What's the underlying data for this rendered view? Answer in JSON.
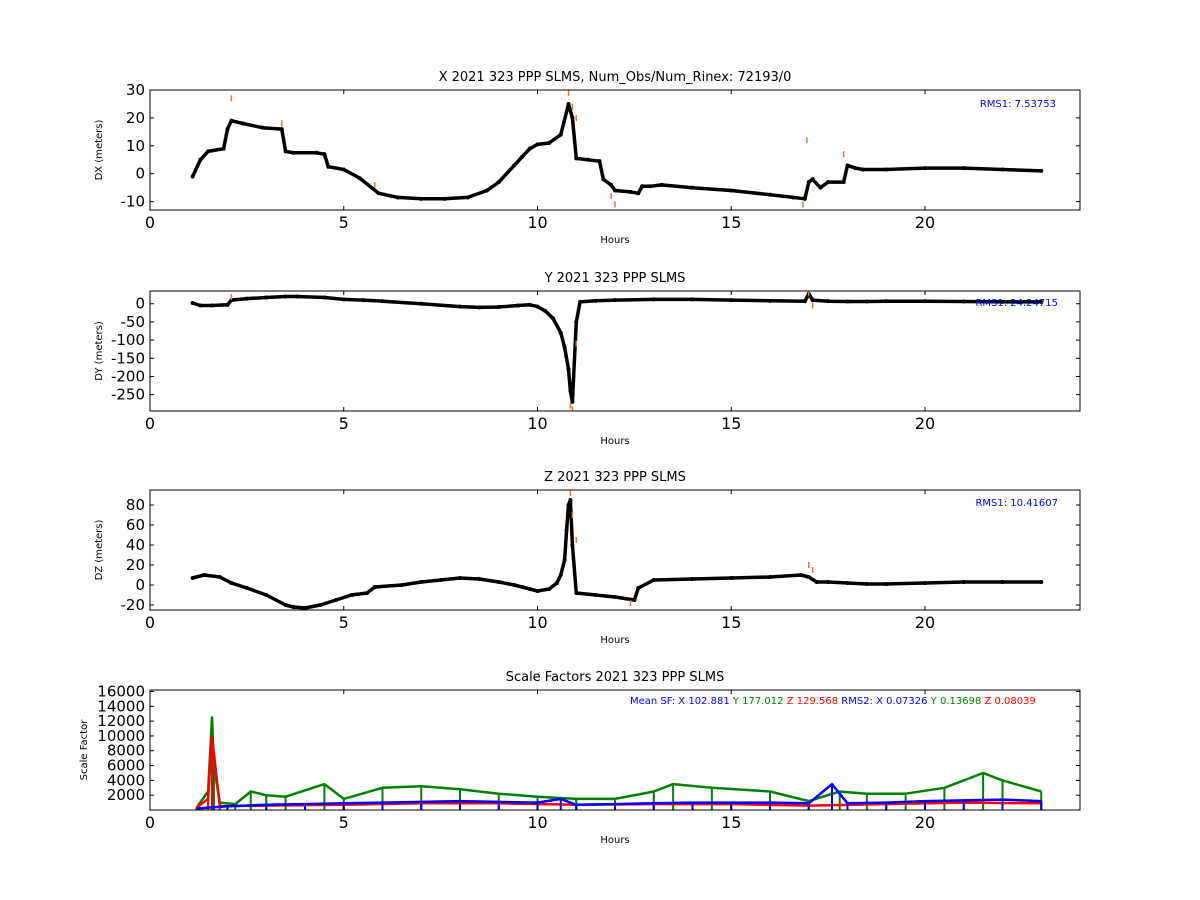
{
  "chart_data": [
    {
      "type": "scatter",
      "title": "X 2021 323 PPP  SLMS, Num_Obs/Num_Rinex: 72193/0",
      "xlabel": "Hours",
      "ylabel": "DX (meters)",
      "xlim": [
        0,
        24
      ],
      "ylim": [
        -13,
        30
      ],
      "xticks": [
        0,
        5,
        10,
        15,
        20
      ],
      "yticks": [
        -10,
        0,
        10,
        20,
        30
      ],
      "annotation": "RMS1:  7.53753",
      "annotation_color": "#0000ff",
      "series": [
        {
          "name": "",
          "color": "#000000",
          "x": [
            1.1,
            1.3,
            1.5,
            1.9,
            2.0,
            2.1,
            2.4,
            2.9,
            3.4,
            3.5,
            3.7,
            4.3,
            4.5,
            4.6,
            5.0,
            5.4,
            5.9,
            6.4,
            7.0,
            7.6,
            8.2,
            8.7,
            9.0,
            9.4,
            9.6,
            9.8,
            10.0,
            10.3,
            10.6,
            10.8,
            10.9,
            11.0,
            11.3,
            11.6,
            11.7,
            11.9,
            12.0,
            12.4,
            12.6,
            12.7,
            12.9,
            13.2,
            14.0,
            15.0,
            16.0,
            16.6,
            16.9,
            17.0,
            17.1,
            17.3,
            17.5,
            17.9,
            18.0,
            18.2,
            18.4,
            19.0,
            20.0,
            21.0,
            22.0,
            23.0
          ],
          "y": [
            -1,
            5,
            8,
            9,
            16,
            19,
            18,
            16.5,
            16,
            8,
            7.5,
            7.5,
            7,
            2.5,
            1.5,
            -1.5,
            -7,
            -8.5,
            -9,
            -9,
            -8.5,
            -6,
            -3,
            3,
            6,
            9,
            10.5,
            11,
            14,
            25,
            20,
            5.5,
            5,
            4.5,
            -2,
            -4,
            -6,
            -6.5,
            -7,
            -4.5,
            -4.5,
            -4,
            -5,
            -6,
            -7.5,
            -8.5,
            -9,
            -3,
            -2,
            -5,
            -3,
            -3,
            3,
            2,
            1.5,
            1.5,
            2,
            2,
            1.5,
            1
          ]
        },
        {
          "name": "",
          "color": "#e8733c",
          "x": [
            2.1,
            3.4,
            5.8,
            10.8,
            10.9,
            11.0,
            11.9,
            12.0,
            16.85,
            16.95,
            17.9
          ],
          "y": [
            27,
            18,
            -4,
            29,
            24,
            20,
            -8,
            -11,
            -11,
            12,
            7
          ]
        }
      ]
    },
    {
      "type": "scatter",
      "title": "Y 2021 323 PPP  SLMS",
      "xlabel": "Hours",
      "ylabel": "DY (meters)",
      "xlim": [
        0,
        24
      ],
      "ylim": [
        -295,
        35
      ],
      "xticks": [
        0,
        5,
        10,
        15,
        20
      ],
      "yticks": [
        -250,
        -200,
        -150,
        -100,
        -50,
        0
      ],
      "annotation": "RMS1:  24.24715",
      "annotation_color": "#0000ff",
      "series": [
        {
          "name": "",
          "color": "#000000",
          "x": [
            1.1,
            1.3,
            1.6,
            2.0,
            2.1,
            2.5,
            3.0,
            3.5,
            3.8,
            4.5,
            5.0,
            5.5,
            6.0,
            7.0,
            8.0,
            8.5,
            9.0,
            9.5,
            9.8,
            10.0,
            10.2,
            10.4,
            10.6,
            10.7,
            10.8,
            10.85,
            10.9,
            11.0,
            11.1,
            11.5,
            12.0,
            13.0,
            14.0,
            15.0,
            16.0,
            16.9,
            17.0,
            17.1,
            17.5,
            18.0,
            18.5,
            19.0,
            20.0,
            21.0,
            22.0,
            23.0
          ],
          "y": [
            2,
            -5,
            -5,
            -3,
            10,
            14,
            17,
            20,
            20,
            17,
            12,
            10,
            7,
            0,
            -8,
            -10,
            -9,
            -5,
            -3,
            -8,
            -20,
            -40,
            -80,
            -120,
            -180,
            -240,
            -270,
            -50,
            5,
            8,
            10,
            12,
            12,
            10,
            8,
            7,
            27,
            10,
            7,
            6,
            6,
            7,
            7,
            6,
            5,
            5
          ]
        },
        {
          "name": "",
          "color": "#e8733c",
          "x": [
            2.1,
            10.85,
            10.9,
            11.0,
            17.0,
            17.1
          ],
          "y": [
            18,
            -280,
            -290,
            -110,
            30,
            -5
          ]
        }
      ]
    },
    {
      "type": "scatter",
      "title": "Z 2021 323 PPP  SLMS",
      "xlabel": "Hours",
      "ylabel": "DZ (meters)",
      "xlim": [
        0,
        24
      ],
      "ylim": [
        -25,
        95
      ],
      "xticks": [
        0,
        5,
        10,
        15,
        20
      ],
      "yticks": [
        -20,
        0,
        20,
        40,
        60,
        80
      ],
      "annotation": "RMS1: 10.41607",
      "annotation_color": "#0000ff",
      "series": [
        {
          "name": "",
          "color": "#000000",
          "x": [
            1.1,
            1.4,
            1.8,
            2.1,
            2.5,
            3.0,
            3.5,
            3.7,
            4.0,
            4.4,
            4.8,
            5.2,
            5.6,
            5.8,
            6.5,
            7.0,
            7.5,
            8.0,
            8.5,
            9.0,
            9.4,
            9.6,
            9.8,
            10.0,
            10.3,
            10.5,
            10.6,
            10.7,
            10.75,
            10.8,
            10.85,
            10.9,
            11.0,
            11.5,
            12.0,
            12.5,
            12.6,
            13.0,
            14.0,
            15.0,
            16.0,
            16.8,
            17.0,
            17.2,
            17.5,
            18.0,
            18.5,
            19.0,
            20.0,
            21.0,
            22.0,
            23.0
          ],
          "y": [
            7,
            10,
            8,
            2,
            -3,
            -10,
            -20,
            -22,
            -23,
            -20,
            -15,
            -10,
            -8,
            -2,
            0,
            3,
            5,
            7,
            6,
            3,
            0,
            -2,
            -4,
            -6,
            -4,
            2,
            10,
            25,
            55,
            80,
            85,
            40,
            -8,
            -10,
            -12,
            -15,
            -3,
            5,
            6,
            7,
            8,
            10,
            8,
            3,
            3,
            2,
            1,
            1,
            2,
            3,
            3,
            3
          ]
        },
        {
          "name": "",
          "color": "#e8733c",
          "x": [
            10.85,
            10.9,
            11.0,
            12.4,
            17.0,
            17.1
          ],
          "y": [
            92,
            70,
            45,
            -18,
            20,
            15
          ]
        }
      ]
    },
    {
      "type": "scatter",
      "title": "Scale Factors 2021 323 PPP  SLMS",
      "xlabel": "Hours",
      "ylabel": "Scale Factor",
      "xlim": [
        0,
        24
      ],
      "ylim": [
        0,
        16200
      ],
      "xticks": [
        0,
        5,
        10,
        15,
        20
      ],
      "yticks": [
        2000,
        4000,
        6000,
        8000,
        10000,
        12000,
        14000,
        16000
      ],
      "annotations": [
        {
          "text": "Mean SF: X 102.881",
          "color": "#0000ff"
        },
        {
          "text": "Y 177.012",
          "color": "#008000"
        },
        {
          "text": "Z 129.568",
          "color": "#ff0000"
        },
        {
          "text": "RMS2: X  0.07326",
          "color": "#0000ff"
        },
        {
          "text": "Y  0.13698",
          "color": "#008000"
        },
        {
          "text": "Z  0.08039",
          "color": "#ff0000"
        }
      ],
      "series": [
        {
          "name": "",
          "color": "#008000",
          "x": [
            1.2,
            1.5,
            1.6,
            1.65,
            1.8,
            2.2,
            2.6,
            3.0,
            3.5,
            4.5,
            5.0,
            6.0,
            7.0,
            8.0,
            9.0,
            10.0,
            11.0,
            12.0,
            13.0,
            13.5,
            14.5,
            16.0,
            17.0,
            17.8,
            18.5,
            19.5,
            20.5,
            21.5,
            22.0,
            23.0
          ],
          "y": [
            300,
            2500,
            12500,
            6000,
            1000,
            800,
            2500,
            2000,
            1800,
            3500,
            1500,
            3000,
            3200,
            2800,
            2200,
            1800,
            1500,
            1500,
            2500,
            3500,
            3000,
            2500,
            1200,
            2500,
            2200,
            2200,
            3000,
            5000,
            4000,
            2500
          ]
        },
        {
          "name": "",
          "color": "#ff0000",
          "x": [
            1.2,
            1.5,
            1.6,
            1.8,
            3.0,
            5.0,
            7.0,
            9.0,
            11.0,
            13.0,
            15.0,
            17.0,
            19.0,
            21.0,
            23.0
          ],
          "y": [
            300,
            1500,
            10000,
            500,
            600,
            700,
            900,
            900,
            700,
            800,
            800,
            600,
            800,
            1000,
            900
          ]
        },
        {
          "name": "",
          "color": "#0000ff",
          "x": [
            1.2,
            2.0,
            3.0,
            4.0,
            5.0,
            6.0,
            7.0,
            8.0,
            9.0,
            10.0,
            10.6,
            11.0,
            12.0,
            13.0,
            14.0,
            15.0,
            16.0,
            17.0,
            17.6,
            18.0,
            19.0,
            20.0,
            21.0,
            22.0,
            23.0
          ],
          "y": [
            200,
            500,
            700,
            800,
            900,
            1000,
            1100,
            1200,
            1100,
            1000,
            1500,
            700,
            800,
            900,
            1000,
            1000,
            1000,
            900,
            3500,
            900,
            1000,
            1200,
            1300,
            1400,
            1200
          ]
        }
      ]
    }
  ]
}
